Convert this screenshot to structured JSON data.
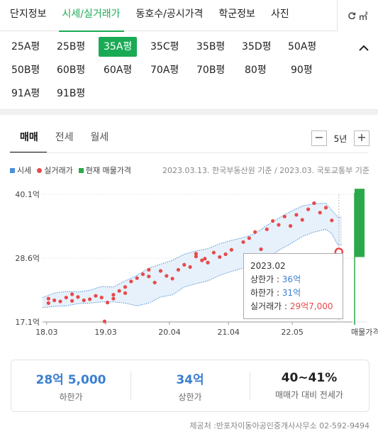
{
  "top_tabs": [
    {
      "label": "단지정보",
      "active": false
    },
    {
      "label": "시세/실거래가",
      "active": true
    },
    {
      "label": "동호수/공시가격",
      "active": false
    },
    {
      "label": "학군정보",
      "active": false
    },
    {
      "label": "사진",
      "active": false
    }
  ],
  "unit_toggle": {
    "label": "㎡"
  },
  "sizes": [
    "25A평",
    "25B평",
    "35A평",
    "35C평",
    "35B평",
    "35D평",
    "50A평",
    "50B평",
    "60B평",
    "60A평",
    "70A평",
    "70B평",
    "80평",
    "90평",
    "91A평",
    "91B평"
  ],
  "selected_size": "35A평",
  "trade_tabs": [
    {
      "label": "매매",
      "active": true
    },
    {
      "label": "전세",
      "active": false
    },
    {
      "label": "월세",
      "active": false
    }
  ],
  "period": {
    "minus": "−",
    "label": "5년",
    "plus": "+"
  },
  "legend": {
    "price_band": "시세",
    "actual": "실거래가",
    "listing": "현재 매물가격"
  },
  "source_note": "2023.03.13. 한국부동산원 기준 / 2023.03. 국토교통부 기준",
  "colors": {
    "accent": "#1aaa55",
    "band": "#4a90d9",
    "actual": "#e84a4a",
    "listing": "#2ba84a"
  },
  "chart_data": {
    "type": "line",
    "y_ticks": [
      "40.1억",
      "28.6억",
      "17.1억"
    ],
    "y_tick_values": [
      40.1,
      28.6,
      17.1
    ],
    "ylim": [
      17.1,
      40.1
    ],
    "x_ticks": [
      "18.03",
      "19.03",
      "20.04",
      "21.04",
      "22.05"
    ],
    "x_tick_values": [
      2018.17,
      2019.17,
      2020.25,
      2021.25,
      2022.33
    ],
    "xlim": [
      2018.1,
      2023.35
    ],
    "listing_label": "매물가격",
    "listing_range": [
      28.8,
      42.0
    ],
    "series": [
      {
        "name": "상한가",
        "x": [
          2018.1,
          2018.3,
          2018.5,
          2018.7,
          2018.9,
          2019.1,
          2019.3,
          2019.5,
          2019.7,
          2019.9,
          2020.1,
          2020.3,
          2020.5,
          2020.7,
          2020.9,
          2021.1,
          2021.3,
          2021.5,
          2021.7,
          2021.9,
          2022.1,
          2022.3,
          2022.5,
          2022.7,
          2022.9,
          2023.0,
          2023.1,
          2023.17
        ],
        "values": [
          21.5,
          22.3,
          22.6,
          22.5,
          22.8,
          23.5,
          23.4,
          24.5,
          25.5,
          26.8,
          27.5,
          28.2,
          29.3,
          29.9,
          30.3,
          31.2,
          31.8,
          32.3,
          33.0,
          34.5,
          35.8,
          37.0,
          38.0,
          38.4,
          38.5,
          37.2,
          36.0,
          36.0
        ]
      },
      {
        "name": "하한가",
        "x": [
          2018.1,
          2018.3,
          2018.5,
          2018.7,
          2018.9,
          2019.1,
          2019.3,
          2019.5,
          2019.7,
          2019.9,
          2020.1,
          2020.3,
          2020.5,
          2020.7,
          2020.9,
          2021.1,
          2021.3,
          2021.5,
          2021.7,
          2021.9,
          2022.1,
          2022.3,
          2022.5,
          2022.7,
          2022.9,
          2023.0,
          2023.1,
          2023.17
        ],
        "values": [
          19.7,
          19.9,
          20.0,
          20.4,
          20.5,
          20.7,
          20.7,
          20.5,
          20.0,
          20.5,
          21.6,
          22.0,
          23.4,
          24.0,
          24.5,
          25.5,
          26.2,
          26.8,
          27.8,
          28.6,
          30.0,
          31.2,
          32.5,
          33.3,
          33.8,
          33.0,
          31.0,
          31.0
        ]
      }
    ],
    "actual_trades": [
      [
        2018.2,
        21.3
      ],
      [
        2018.2,
        20.5
      ],
      [
        2018.3,
        21.0
      ],
      [
        2018.4,
        20.8
      ],
      [
        2018.5,
        21.5
      ],
      [
        2018.6,
        20.9
      ],
      [
        2018.6,
        22.1
      ],
      [
        2018.7,
        21.6
      ],
      [
        2018.8,
        21.0
      ],
      [
        2018.9,
        21.2
      ],
      [
        2019.0,
        21.8
      ],
      [
        2019.1,
        21.5
      ],
      [
        2019.2,
        20.6
      ],
      [
        2019.3,
        21.3
      ],
      [
        2019.3,
        22.0
      ],
      [
        2019.4,
        22.7
      ],
      [
        2019.5,
        23.4
      ],
      [
        2019.5,
        22.3
      ],
      [
        2019.6,
        24.4
      ],
      [
        2019.7,
        25.0
      ],
      [
        2019.8,
        25.7
      ],
      [
        2019.9,
        25.3
      ],
      [
        2019.9,
        26.5
      ],
      [
        2020.0,
        24.2
      ],
      [
        2020.1,
        26.3
      ],
      [
        2020.2,
        25.4
      ],
      [
        2020.3,
        24.9
      ],
      [
        2020.4,
        26.5
      ],
      [
        2020.5,
        27.4
      ],
      [
        2020.6,
        27.0
      ],
      [
        2020.7,
        28.9
      ],
      [
        2020.7,
        29.4
      ],
      [
        2020.8,
        28.2
      ],
      [
        2020.9,
        27.8
      ],
      [
        2021.0,
        29.6
      ],
      [
        2021.1,
        28.8
      ],
      [
        2021.2,
        29.3
      ],
      [
        2021.3,
        30.1
      ],
      [
        2021.5,
        31.5
      ],
      [
        2021.6,
        32.2
      ],
      [
        2021.7,
        33.3
      ],
      [
        2021.8,
        30.2
      ],
      [
        2021.9,
        33.8
      ],
      [
        2022.0,
        35.3
      ],
      [
        2022.1,
        34.6
      ],
      [
        2022.2,
        36.1
      ],
      [
        2022.3,
        34.4
      ],
      [
        2022.4,
        36.4
      ],
      [
        2022.5,
        35.5
      ],
      [
        2022.6,
        37.4
      ],
      [
        2022.7,
        38.5
      ],
      [
        2022.8,
        36.8
      ],
      [
        2022.9,
        37.7
      ],
      [
        2023.0,
        35.4
      ],
      [
        2019.15,
        17.2
      ],
      [
        2020.85,
        28.5
      ]
    ],
    "tooltip": {
      "date": "2023.02",
      "upper_label": "상한가",
      "upper_value": "36억",
      "lower_label": "하한가",
      "lower_value": "31억",
      "actual_label": "실거래가",
      "actual_value": "29억7,000",
      "x": 2023.12,
      "y": 29.7
    }
  },
  "summary": [
    {
      "value": "28억 5,000",
      "label": "하한가"
    },
    {
      "value": "34억",
      "label": "상한가"
    },
    {
      "value": "40~41%",
      "label": "매매가 대비 전세가"
    }
  ],
  "provider": "제공처 :반포자이동아공인중개사사무소 02-592-9494"
}
